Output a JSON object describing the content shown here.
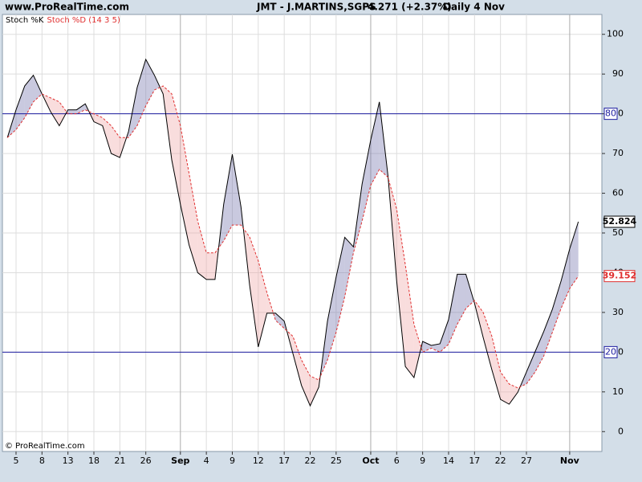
{
  "chart_data": {
    "type": "line",
    "site": "www.ProRealTime.com",
    "title": "JMT - J.MARTINS,SGPS",
    "quote": "4.271 (+2.37%)",
    "period": "Daily  4 Nov",
    "copyright": "© ProRealTime.com",
    "categories": [
      null,
      "5",
      null,
      null,
      "8",
      null,
      null,
      "13",
      null,
      null,
      "18",
      null,
      null,
      "21",
      null,
      null,
      "26",
      null,
      null,
      null,
      "Sep",
      null,
      null,
      "4",
      null,
      null,
      "9",
      null,
      null,
      "12",
      null,
      null,
      "17",
      null,
      null,
      "22",
      null,
      null,
      "25",
      null,
      null,
      null,
      "Oct",
      null,
      null,
      "6",
      null,
      null,
      "9",
      null,
      null,
      "14",
      null,
      null,
      "17",
      null,
      null,
      "22",
      null,
      null,
      "27",
      null,
      null,
      null,
      null,
      "Nov",
      null
    ],
    "month_labels": [
      "Sep",
      "Oct",
      "Nov"
    ],
    "series": [
      {
        "name": "Stoch %K",
        "color": "#000000",
        "values": [
          74,
          81,
          87,
          89.7,
          85,
          80.5,
          77,
          81,
          81,
          82.5,
          78,
          77,
          70,
          69,
          75.5,
          86.6,
          93.7,
          89.7,
          85,
          68.4,
          57.2,
          47,
          40,
          38.3,
          38.3,
          57.2,
          69.8,
          56.6,
          36.9,
          21.3,
          29.8,
          29.8,
          27.8,
          19.7,
          11.6,
          6.5,
          11.2,
          27.8,
          38.9,
          48.9,
          46.5,
          62.3,
          73.4,
          83,
          64.3,
          37.9,
          16.4,
          13.6,
          22.7,
          21.7,
          22.1,
          28.2,
          39.6,
          39.6,
          32.3,
          23.7,
          15.6,
          8.1,
          6.9,
          9.9,
          15,
          20.1,
          25.2,
          30.8,
          37.9,
          46,
          52.824
        ]
      },
      {
        "name": "Stoch %D (14 3 5)",
        "color": "#e03030",
        "values": [
          74,
          76,
          79,
          83,
          85,
          84,
          83,
          80,
          80,
          81,
          80,
          79,
          77,
          74,
          74,
          77,
          82,
          86,
          87,
          85,
          77,
          65,
          53,
          45,
          45,
          48,
          52,
          52,
          49,
          43,
          35,
          28,
          26,
          24,
          18,
          14,
          13,
          18,
          25,
          34,
          45,
          53,
          62,
          66,
          64,
          56,
          42,
          27,
          20,
          21,
          20,
          22,
          27,
          31,
          33,
          30,
          24,
          15,
          12,
          11,
          12,
          15,
          19,
          25,
          31,
          36,
          39.152
        ]
      }
    ],
    "ylim": [
      -5,
      105
    ],
    "yticks": [
      0,
      10,
      20,
      30,
      40,
      50,
      60,
      70,
      80,
      90,
      100
    ],
    "levels": [
      80,
      20
    ],
    "level_color": "#1c1ca0",
    "grid": true
  }
}
